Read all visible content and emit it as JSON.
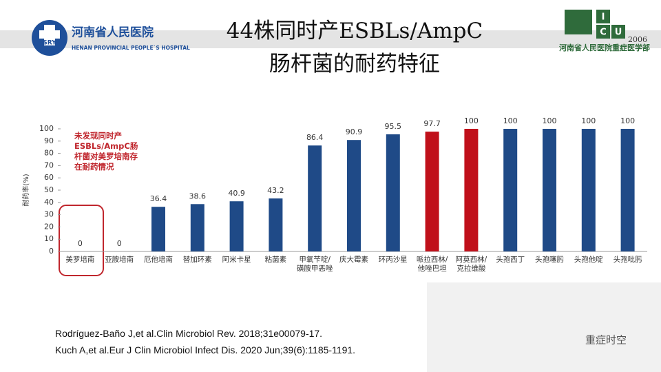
{
  "header": {
    "title_lines": [
      "44株同时产ESBLs/AmpC",
      "肠杆菌的耐药特征"
    ],
    "logo_left": {
      "badge": "SRY",
      "name": "河南省人民医院",
      "english": "HENAN PROVINCIAL PEOPLE`S HOSPITAL"
    },
    "logo_right": {
      "letters": [
        "I",
        "C",
        "U"
      ],
      "year": "2006",
      "name": "河南省人民医院重症医学部"
    }
  },
  "chart_data": {
    "type": "bar",
    "y_label": "耐药率(%)",
    "annotation_lines": [
      "未发现同时产",
      "ESBLs/AmpC肠",
      "杆菌对美罗培南存",
      "在耐药情况"
    ],
    "categories": [
      "美罗培南",
      "亚胺培南",
      "厄他培南",
      "替加环素",
      "阿米卡星",
      "粘菌素",
      "甲氧苄啶/磺胺甲恶唑",
      "庆大霉素",
      "环丙沙星",
      "哌拉西林/他唑巴坦",
      "阿莫西林/克拉维酸",
      "头孢西丁",
      "头孢噻肟",
      "头孢他啶",
      "头孢吡肟"
    ],
    "values": [
      0,
      0,
      36.4,
      38.6,
      40.9,
      43.2,
      86.4,
      90.9,
      95.5,
      97.7,
      100,
      100,
      100,
      100,
      100
    ],
    "colors": [
      "#1f4a87",
      "#1f4a87",
      "#1f4a87",
      "#1f4a87",
      "#1f4a87",
      "#1f4a87",
      "#1f4a87",
      "#1f4a87",
      "#1f4a87",
      "#c0101a",
      "#c0101a",
      "#1f4a87",
      "#1f4a87",
      "#1f4a87",
      "#1f4a87"
    ],
    "ylim": [
      0,
      100
    ],
    "yticks": [
      0,
      10,
      20,
      30,
      40,
      50,
      60,
      70,
      80,
      90,
      100
    ],
    "grid": false
  },
  "references": [
    "Rodríguez-Baño J,et al.Clin Microbiol Rev. 2018;31e00079-17.",
    "Kuch A,et al.Eur J Clin Microbiol Infect Dis. 2020 Jun;39(6):1185-1191."
  ],
  "watermark": "重症时空"
}
